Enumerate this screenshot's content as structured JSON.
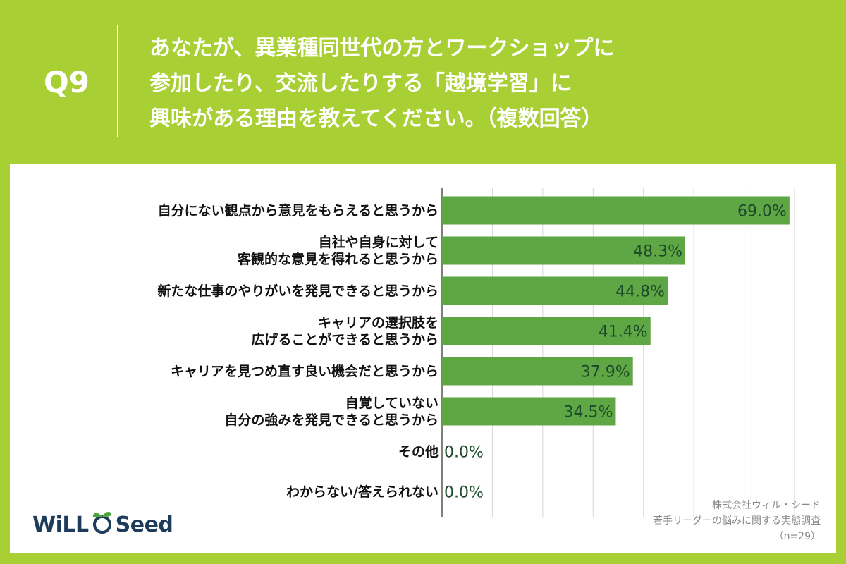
{
  "header": {
    "qnum": "Q9",
    "question_lines": [
      "あなたが、異業種同世代の方とワークショップに",
      "参加したり、交流したりする「越境学習」に",
      "興味がある理由を教えてください。（複数回答）"
    ]
  },
  "chart_data": {
    "type": "bar",
    "orientation": "horizontal",
    "categories": [
      "自分にない観点から意見をもらえると思うから",
      "自社や自身に対して\n客観的な意見を得れると思うから",
      "新たな仕事のやりがいを発見できると思うから",
      "キャリアの選択肢を\n広げることができると思うから",
      "キャリアを見つめ直す良い機会だと思うから",
      "自覚していない\n自分の強みを発見できると思うから",
      "その他",
      "わからない/答えられない"
    ],
    "values": [
      69.0,
      48.3,
      44.8,
      41.4,
      37.9,
      34.5,
      0.0,
      0.0
    ],
    "value_labels": [
      "69.0%",
      "48.3%",
      "44.8%",
      "41.4%",
      "37.9%",
      "34.5%",
      "0.0%",
      "0.0%"
    ],
    "xlim": [
      0,
      70
    ],
    "grid": true,
    "bar_color": "#5fa644",
    "label_color": "#1d4a2a"
  },
  "credit": {
    "company": "株式会社ウィル・シード",
    "survey": "若手リーダーの悩みに関する実態調査",
    "n": "（n=29）"
  },
  "logo": {
    "left": "WiLL",
    "right": "Seed"
  }
}
